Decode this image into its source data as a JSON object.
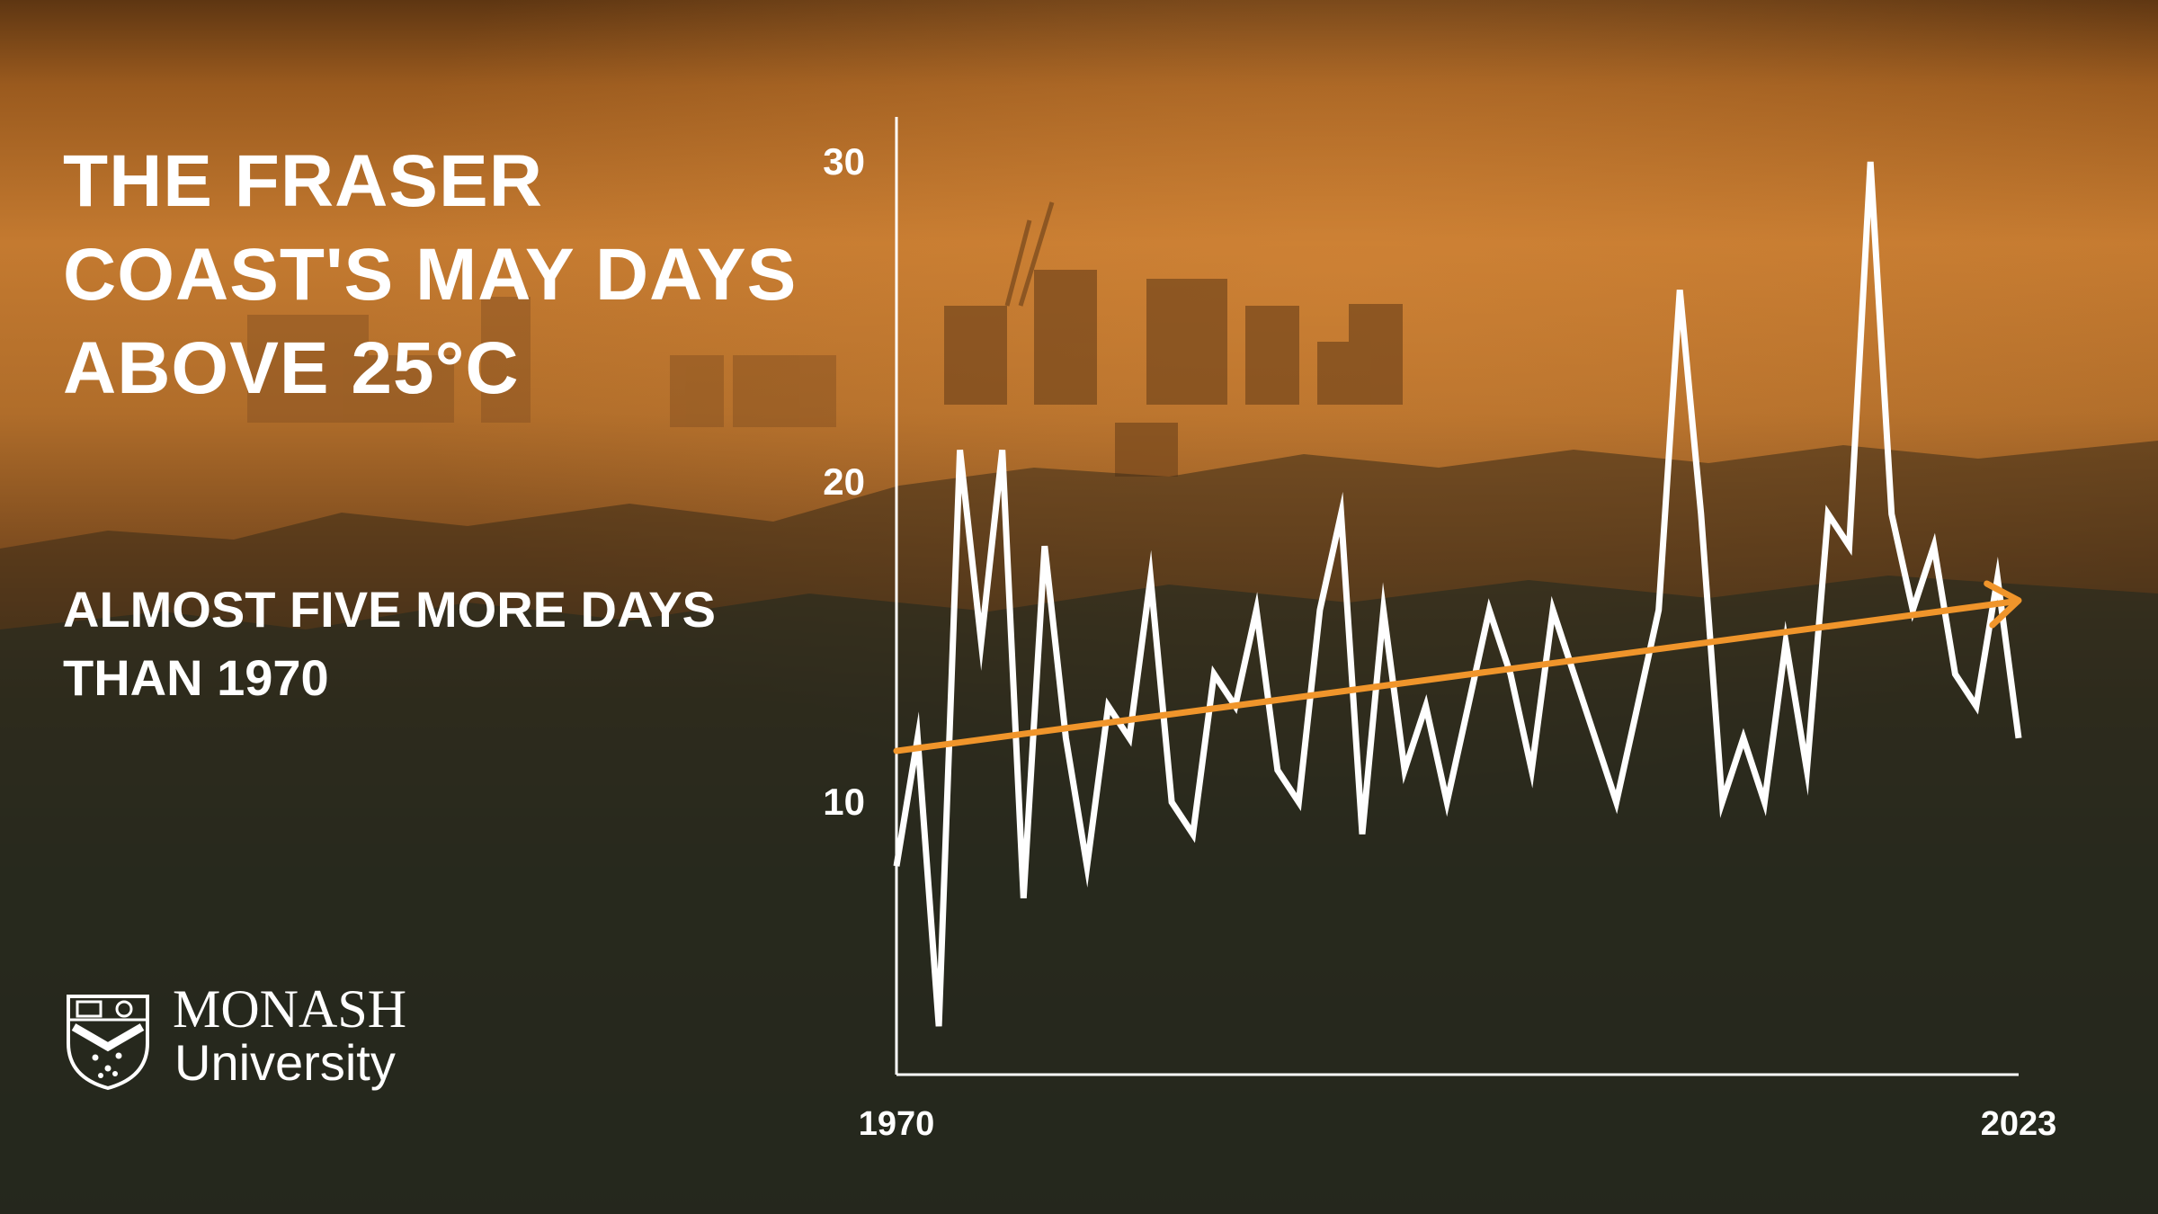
{
  "headline": "THE FRASER COAST'S MAY DAYS ABOVE 25°C",
  "subline": "ALMOST FIVE MORE DAYS THAN 1970",
  "logo": {
    "word1": "MONASH",
    "word2": "University"
  },
  "colors": {
    "series": "#ffffff",
    "trend": "#f0952b",
    "axis": "#ffffff",
    "text": "#ffffff"
  },
  "chart_data": {
    "type": "line",
    "title": "THE FRASER COAST'S MAY DAYS ABOVE 25°C",
    "subtitle": "ALMOST FIVE MORE DAYS THAN 1970",
    "xlabel": "",
    "ylabel": "",
    "xlim": [
      1970,
      2023
    ],
    "ylim": [
      2,
      31
    ],
    "x_tick_labels": [
      "1970",
      "2023"
    ],
    "y_ticks": [
      10,
      20,
      30
    ],
    "grid": false,
    "legend": "none",
    "x": [
      1970,
      1971,
      1972,
      1973,
      1974,
      1975,
      1976,
      1977,
      1978,
      1979,
      1980,
      1981,
      1982,
      1983,
      1984,
      1985,
      1986,
      1987,
      1988,
      1989,
      1990,
      1991,
      1992,
      1993,
      1994,
      1995,
      1996,
      1997,
      1998,
      1999,
      2000,
      2001,
      2002,
      2003,
      2004,
      2005,
      2006,
      2007,
      2008,
      2009,
      2010,
      2011,
      2012,
      2013,
      2014,
      2015,
      2016,
      2017,
      2018,
      2019,
      2020,
      2021,
      2022,
      2023
    ],
    "series": [
      {
        "values": [
          8,
          12,
          3,
          21,
          15,
          21,
          7,
          18,
          12,
          8,
          13,
          12,
          17,
          10,
          9,
          14,
          13,
          16,
          11,
          10,
          16,
          19,
          9,
          16,
          11,
          13,
          10,
          13,
          16,
          14,
          11,
          16,
          14,
          12,
          10,
          13,
          16,
          26,
          19,
          10,
          12,
          10,
          15,
          11,
          19,
          18,
          30,
          19,
          16,
          18,
          14,
          13,
          17,
          12
        ]
      }
    ],
    "trend": {
      "start": [
        1970,
        11.6
      ],
      "end": [
        2023,
        16.3
      ],
      "arrow": true
    }
  }
}
